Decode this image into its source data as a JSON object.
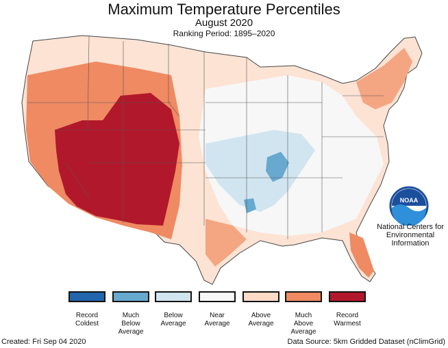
{
  "header": {
    "title": "Maximum Temperature Percentiles",
    "subtitle": "August 2020",
    "ranking": "Ranking Period: 1895–2020"
  },
  "logo": {
    "text": "NOAA",
    "icon": "noaa-logo-icon",
    "org_lines": [
      "National Centers for",
      "Environmental",
      "Information"
    ]
  },
  "legend": [
    {
      "label": "Record\nColdest",
      "color": "#2166ac"
    },
    {
      "label": "Much\nBelow\nAverage",
      "color": "#67a9cf"
    },
    {
      "label": "Below\nAverage",
      "color": "#d1e5f0"
    },
    {
      "label": "Near\nAverage",
      "color": "#f7f7f7"
    },
    {
      "label": "Above\nAverage",
      "color": "#fddbc7"
    },
    {
      "label": "Much\nAbove\nAverage",
      "color": "#ef8a62"
    },
    {
      "label": "Record\nWarmest",
      "color": "#b2182b"
    }
  ],
  "footer": {
    "created": "Created: Fri Sep 04 2020",
    "source": "Data Source: 5km Gridded Dataset (nClimGrid)"
  }
}
